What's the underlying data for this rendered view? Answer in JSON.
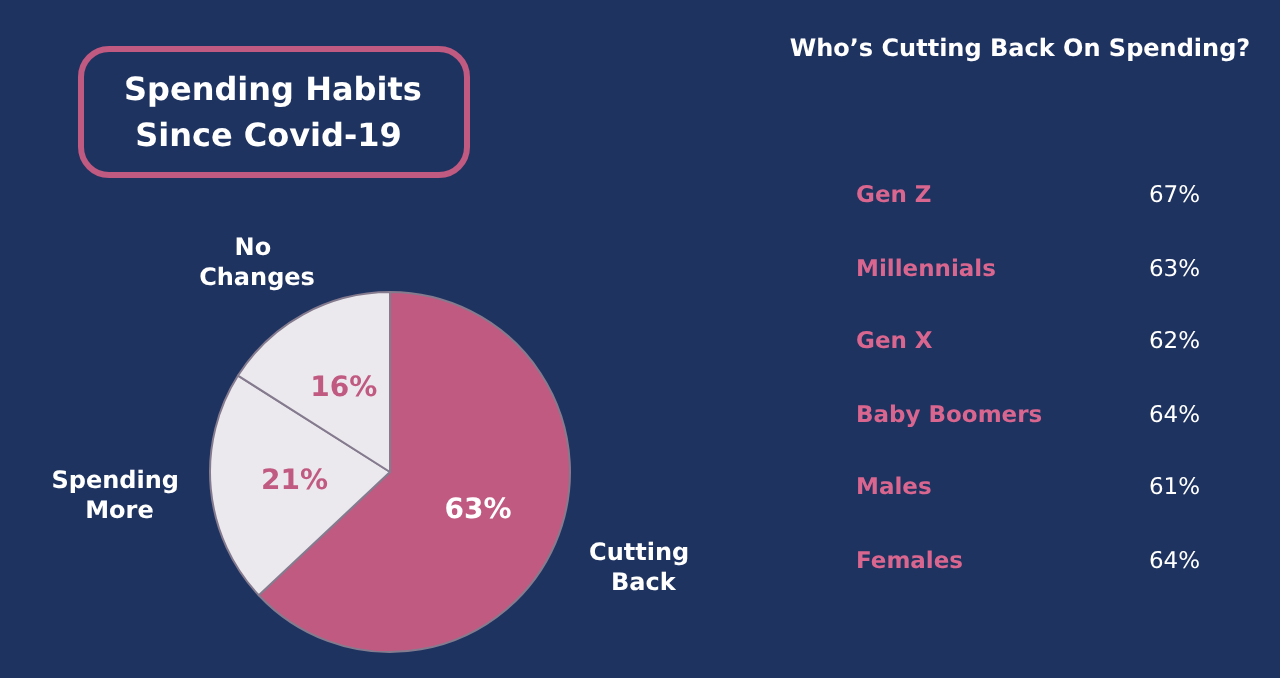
{
  "chart_data": [
    {
      "type": "pie",
      "title": "Spending Habits Since Covid-19",
      "categories": [
        "Cutting Back",
        "Spending More",
        "No Changes"
      ],
      "values": [
        63,
        21,
        16
      ],
      "value_labels": [
        "63%",
        "21%",
        "16%"
      ],
      "colors": [
        "#c05a80",
        "#ece9ee",
        "#ece9ee"
      ],
      "legend": false
    },
    {
      "type": "other",
      "title": "Who’s Cutting Back On Spending?",
      "categories": [
        "Gen Z",
        "Millennials",
        "Gen X",
        "Baby Boomers",
        "Males",
        "Females"
      ],
      "values": [
        67,
        63,
        62,
        64,
        61,
        64
      ],
      "value_labels": [
        "67%",
        "63%",
        "62%",
        "64%",
        "61%",
        "64%"
      ],
      "color": "#d9668f"
    }
  ]
}
